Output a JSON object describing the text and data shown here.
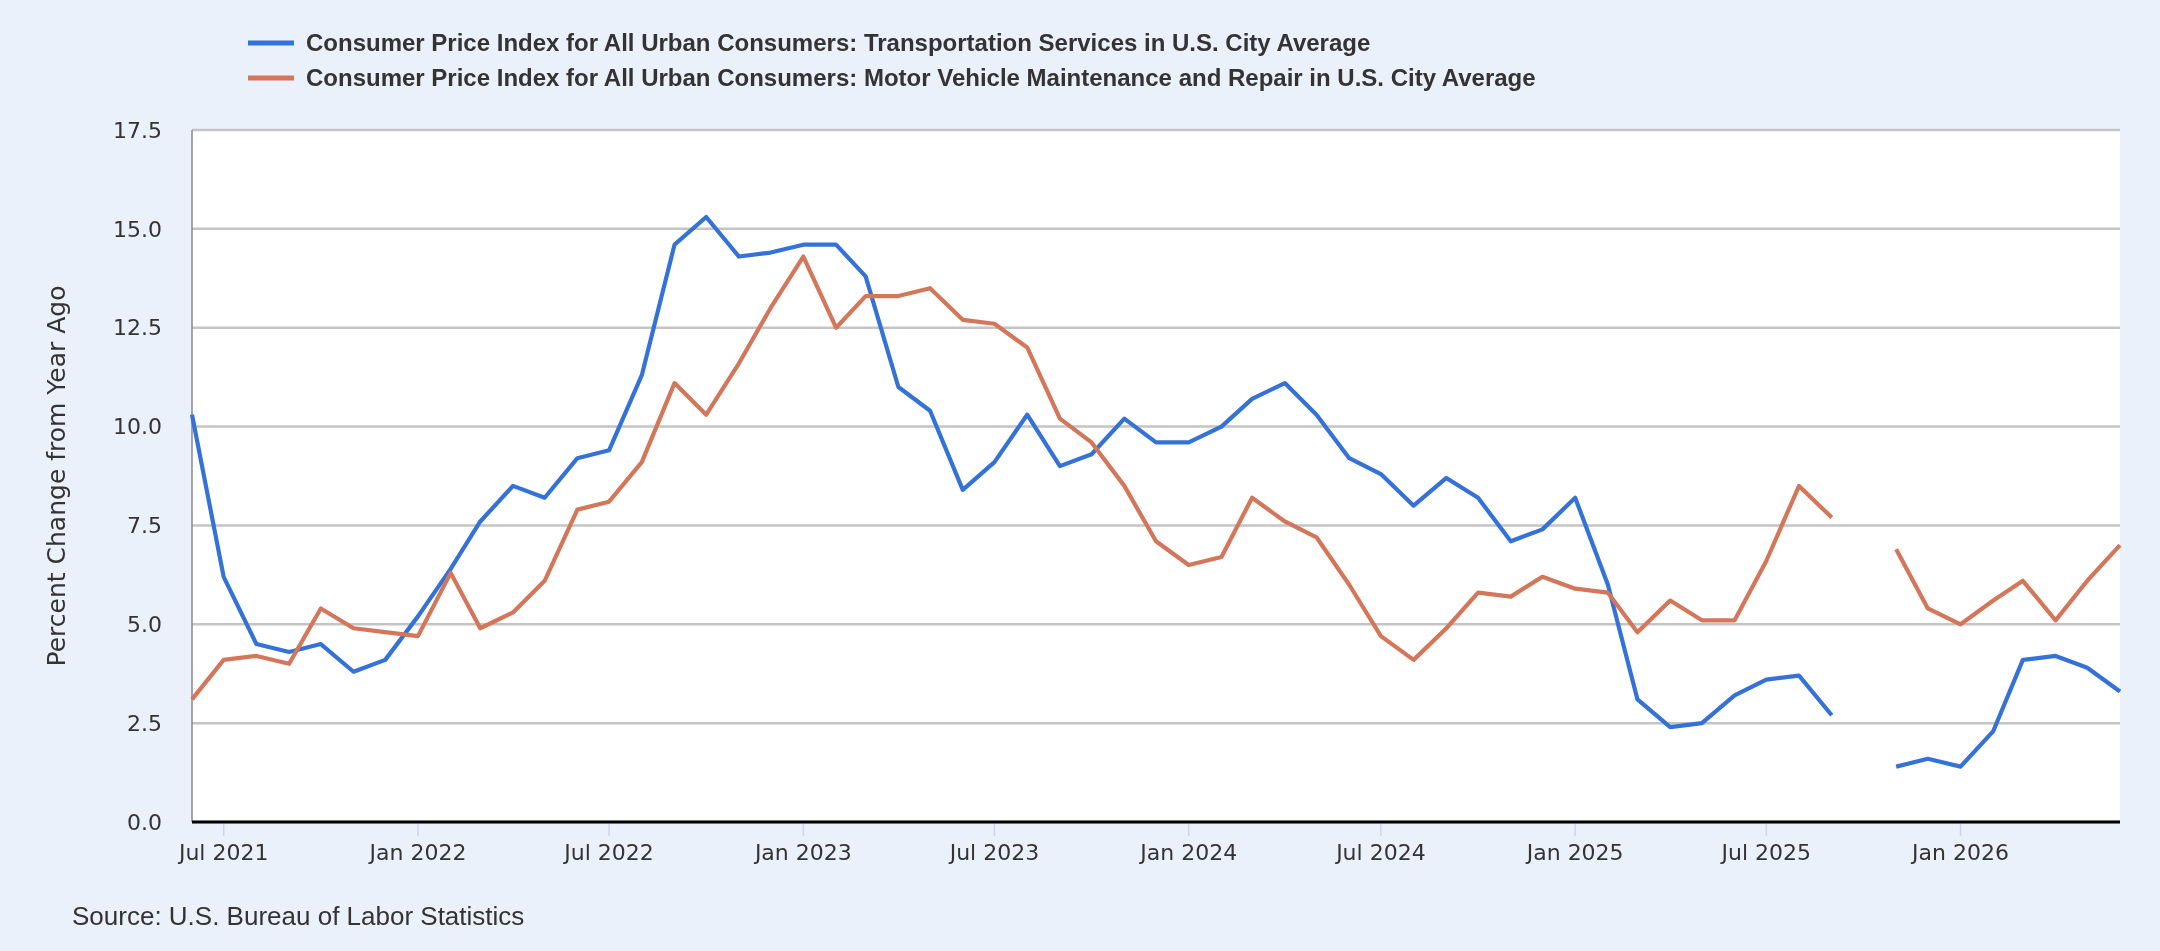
{
  "chart_data": {
    "type": "line",
    "ylabel": "Percent Change from Year Ago",
    "x": [
      "2021-06",
      "2021-07",
      "2021-08",
      "2021-09",
      "2021-10",
      "2021-11",
      "2021-12",
      "2022-01",
      "2022-02",
      "2022-03",
      "2022-04",
      "2022-05",
      "2022-06",
      "2022-07",
      "2022-08",
      "2022-09",
      "2022-10",
      "2022-11",
      "2022-12",
      "2023-01",
      "2023-02",
      "2023-03",
      "2023-04",
      "2023-05",
      "2023-06",
      "2023-07",
      "2023-08",
      "2023-09",
      "2023-10",
      "2023-11",
      "2023-12",
      "2024-01",
      "2024-02",
      "2024-03",
      "2024-04",
      "2024-05",
      "2024-06",
      "2024-07",
      "2024-08",
      "2024-09",
      "2024-10",
      "2024-11",
      "2024-12",
      "2025-01",
      "2025-02",
      "2025-03",
      "2025-04",
      "2025-05",
      "2025-06",
      "2025-07",
      "2025-08",
      "2025-09",
      "2025-10",
      "2025-11",
      "2025-12",
      "2026-01",
      "2026-02",
      "2026-03",
      "2026-04",
      "2026-05",
      "2026-06"
    ],
    "series": [
      {
        "name": "Consumer Price Index for All Urban Consumers: Transportation Services in U.S. City Average",
        "color": "#3572d8",
        "values": [
          10.3,
          6.2,
          4.5,
          4.3,
          4.5,
          3.8,
          4.1,
          5.2,
          6.4,
          7.6,
          8.5,
          8.2,
          9.2,
          9.4,
          11.3,
          14.6,
          15.3,
          14.3,
          14.4,
          14.6,
          14.6,
          13.8,
          11.0,
          10.4,
          8.4,
          9.1,
          10.3,
          9.0,
          9.3,
          10.2,
          9.6,
          9.6,
          10.0,
          10.7,
          11.1,
          10.3,
          9.2,
          8.8,
          8.0,
          8.7,
          8.2,
          7.1,
          7.4,
          8.2,
          6.0,
          3.1,
          2.4,
          2.5,
          3.2,
          3.6,
          3.7,
          2.7,
          null,
          1.4,
          1.6,
          1.4,
          2.3,
          4.1,
          4.2,
          3.9,
          3.3
        ]
      },
      {
        "name": "Consumer Price Index for All Urban Consumers: Motor Vehicle Maintenance and Repair in U.S. City Average",
        "color": "#d3765a",
        "values": [
          3.1,
          4.1,
          4.2,
          4.0,
          5.4,
          4.9,
          4.8,
          4.7,
          6.3,
          4.9,
          5.3,
          6.1,
          7.9,
          8.1,
          9.1,
          11.1,
          10.3,
          11.6,
          13.0,
          14.3,
          12.5,
          13.3,
          13.3,
          13.5,
          12.7,
          12.6,
          12.0,
          10.2,
          9.6,
          8.5,
          7.1,
          6.5,
          6.7,
          8.2,
          7.6,
          7.2,
          6.0,
          4.7,
          4.1,
          4.9,
          5.8,
          5.7,
          6.2,
          5.9,
          5.8,
          4.8,
          5.6,
          5.1,
          5.1,
          6.6,
          8.5,
          7.7,
          null,
          6.9,
          5.4,
          5.0,
          5.6,
          6.1,
          5.1,
          6.1,
          7.0
        ]
      }
    ],
    "xlim": [
      "2021-06",
      "2026-06"
    ],
    "xticks": [
      {
        "value": "2021-07",
        "label": "Jul 2021"
      },
      {
        "value": "2022-01",
        "label": "Jan 2022"
      },
      {
        "value": "2022-07",
        "label": "Jul 2022"
      },
      {
        "value": "2023-01",
        "label": "Jan 2023"
      },
      {
        "value": "2023-07",
        "label": "Jul 2023"
      },
      {
        "value": "2024-01",
        "label": "Jan 2024"
      },
      {
        "value": "2024-07",
        "label": "Jul 2024"
      },
      {
        "value": "2025-01",
        "label": "Jan 2025"
      },
      {
        "value": "2025-07",
        "label": "Jul 2025"
      },
      {
        "value": "2026-01",
        "label": "Jan 2026"
      }
    ],
    "ylim": [
      0,
      17.5
    ],
    "yticks": [
      {
        "value": 0,
        "label": "0.0"
      },
      2.5,
      {
        "value": 5,
        "label": "5.0"
      },
      7.5,
      {
        "value": 10,
        "label": "10.0"
      },
      12.5,
      {
        "value": 15,
        "label": "15.0"
      },
      17.5
    ],
    "grid": "y",
    "legend": "top left",
    "annotations": [
      "Source: U.S. Bureau of Labor Statistics"
    ]
  }
}
